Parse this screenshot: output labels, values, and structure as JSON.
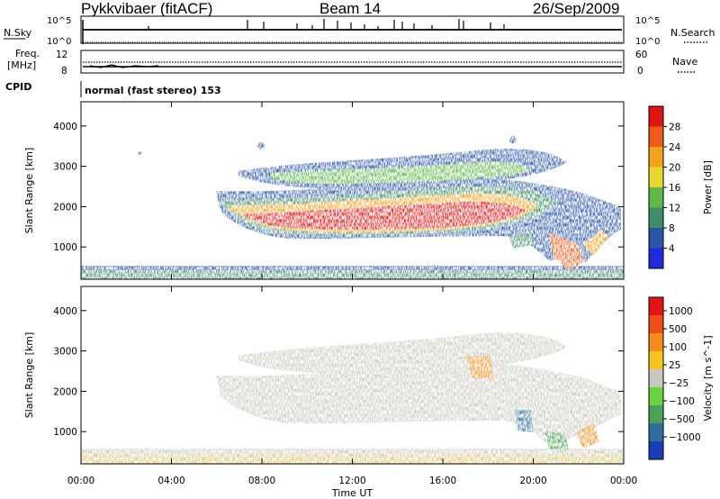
{
  "header": {
    "title": "Pykkvibaer (fitACF)",
    "beam": "Beam 14",
    "date": "26/Sep/2009"
  },
  "meta_panels": {
    "nsky_label": "N.Sky",
    "nsearch_label": "N.Search",
    "noise_ticks_top": "10^5",
    "noise_ticks_bottom": "10^0",
    "freq_label_top": "Freq.",
    "freq_label_bottom": "[MHz]",
    "freq_ticks": [
      "12",
      "8"
    ],
    "nave_label": "Nave",
    "nave_ticks": [
      "60",
      "0"
    ],
    "cpid_label": "CPID",
    "cpid_text": "normal (fast stereo) 153"
  },
  "chart_data": [
    {
      "type": "heatmap",
      "name": "power-panel",
      "ylabel": "Slant Range [km]",
      "yticks": [
        1000,
        2000,
        3000,
        4000
      ],
      "ylim": [
        200,
        4600
      ],
      "xlim": [
        0,
        24
      ],
      "colorbar": {
        "label": "Power [dB]",
        "ticks": [
          "4",
          "8",
          "12",
          "16",
          "20",
          "24",
          "28"
        ],
        "colors": [
          "#1e2bdc",
          "#2a55a8",
          "#3f8d6a",
          "#5eb84a",
          "#e9d62e",
          "#f3a21c",
          "#ee5a18",
          "#e01414"
        ]
      },
      "features": [
        {
          "desc": "main echo band",
          "t_start": 6.0,
          "t_end": 23.3,
          "range_km": [
            900,
            2300
          ],
          "power_db": 28
        },
        {
          "desc": "upper echo band",
          "t_start": 7.0,
          "t_end": 21.0,
          "range_km": [
            2400,
            3400
          ],
          "power_db": 10
        },
        {
          "desc": "ground clutter",
          "t_start": 0.0,
          "t_end": 24.0,
          "range_km": [
            200,
            500
          ],
          "power_db": 8
        }
      ]
    },
    {
      "type": "heatmap",
      "name": "velocity-panel",
      "ylabel": "Slant Range [km]",
      "yticks": [
        1000,
        2000,
        3000,
        4000
      ],
      "ylim": [
        200,
        4600
      ],
      "xlim": [
        0,
        24
      ],
      "xlabel": "Time UT",
      "xticks": [
        "00:00",
        "04:00",
        "08:00",
        "12:00",
        "16:00",
        "20:00",
        "00:00"
      ],
      "colorbar": {
        "label": "Velocity [m s^-1]",
        "ticks": [
          "1000",
          "500",
          "100",
          "25",
          "−25",
          "−100",
          "−500",
          "−1000"
        ],
        "colors": [
          "#1a3cb8",
          "#2f6e9c",
          "#4ca05a",
          "#6cd23c",
          "#c8c8be",
          "#f4c41c",
          "#f48c1c",
          "#f04e18",
          "#e41414"
        ]
      }
    }
  ]
}
